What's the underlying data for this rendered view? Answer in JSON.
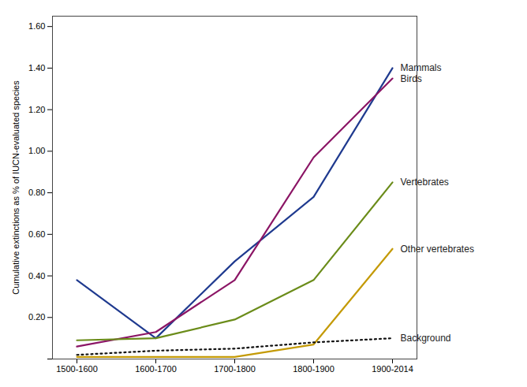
{
  "chart_data": {
    "type": "line",
    "categories": [
      "1500-1600",
      "1600-1700",
      "1700-1800",
      "1800-1900",
      "1900-2014"
    ],
    "series": [
      {
        "name": "Mammals",
        "color": "#1f3a8f",
        "line_style": "solid",
        "values": [
          0.38,
          0.1,
          0.47,
          0.78,
          1.4
        ]
      },
      {
        "name": "Birds",
        "color": "#8b1565",
        "line_style": "solid",
        "values": [
          0.06,
          0.13,
          0.38,
          0.97,
          1.35
        ]
      },
      {
        "name": "Vertebrates",
        "color": "#6b8c1a",
        "line_style": "solid",
        "values": [
          0.09,
          0.1,
          0.19,
          0.38,
          0.85
        ]
      },
      {
        "name": "Other vertebrates",
        "color": "#c49a06",
        "line_style": "solid",
        "values": [
          0.01,
          0.01,
          0.01,
          0.07,
          0.53
        ]
      },
      {
        "name": "Background",
        "color": "#111111",
        "line_style": "dotted",
        "values": [
          0.02,
          0.04,
          0.05,
          0.08,
          0.1
        ]
      }
    ],
    "ylabel": "Cumulative extinctions as % of IUCN-evaluated species",
    "ylim": [
      0,
      1.65
    ],
    "yticks": [
      {
        "value": 0.0,
        "label": ""
      },
      {
        "value": 0.2,
        "label": "0.20"
      },
      {
        "value": 0.4,
        "label": "0.40"
      },
      {
        "value": 0.6,
        "label": "0.60"
      },
      {
        "value": 0.8,
        "label": "0.80"
      },
      {
        "value": 1.0,
        "label": "1.00"
      },
      {
        "value": 1.2,
        "label": "1.20"
      },
      {
        "value": 1.4,
        "label": "1.40"
      },
      {
        "value": 1.6,
        "label": "1.60"
      }
    ],
    "grid": false
  }
}
